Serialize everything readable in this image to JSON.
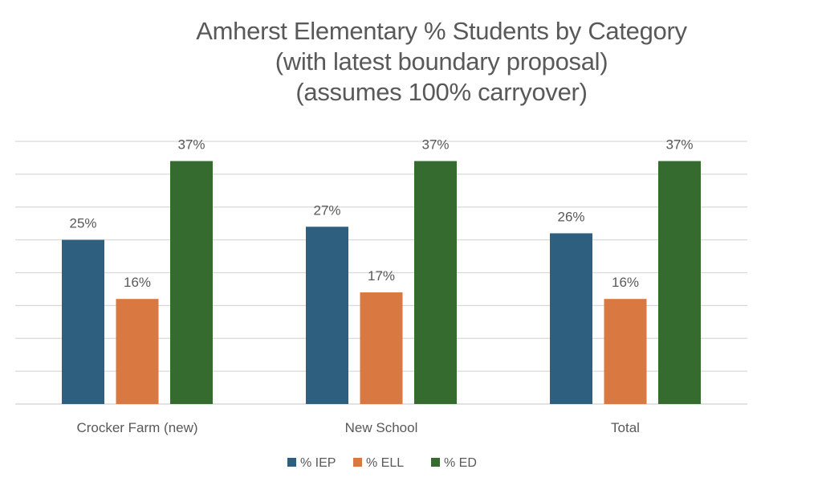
{
  "chart_data": {
    "type": "bar",
    "title": [
      "Amherst Elementary % Students by Category",
      "(with latest boundary proposal)",
      "(assumes 100% carryover)"
    ],
    "xlabel": "",
    "ylabel": "",
    "ylim": [
      0,
      40
    ],
    "ytick_step": 5,
    "grid": true,
    "y_axis_labels_shown": false,
    "legend_position": "bottom",
    "categories": [
      "Crocker Farm (new)",
      "New School",
      "Total"
    ],
    "series": [
      {
        "name": "% IEP",
        "color": "#2e5f7f",
        "values": [
          25,
          27,
          26
        ],
        "labels": [
          "25%",
          "27%",
          "26%"
        ]
      },
      {
        "name": "% ELL",
        "color": "#d97840",
        "values": [
          16,
          17,
          16
        ],
        "labels": [
          "16%",
          "17%",
          "16%"
        ]
      },
      {
        "name": "% ED",
        "color": "#356b2e",
        "values": [
          37,
          37,
          37
        ],
        "labels": [
          "37%",
          "37%",
          "37%"
        ]
      }
    ]
  }
}
